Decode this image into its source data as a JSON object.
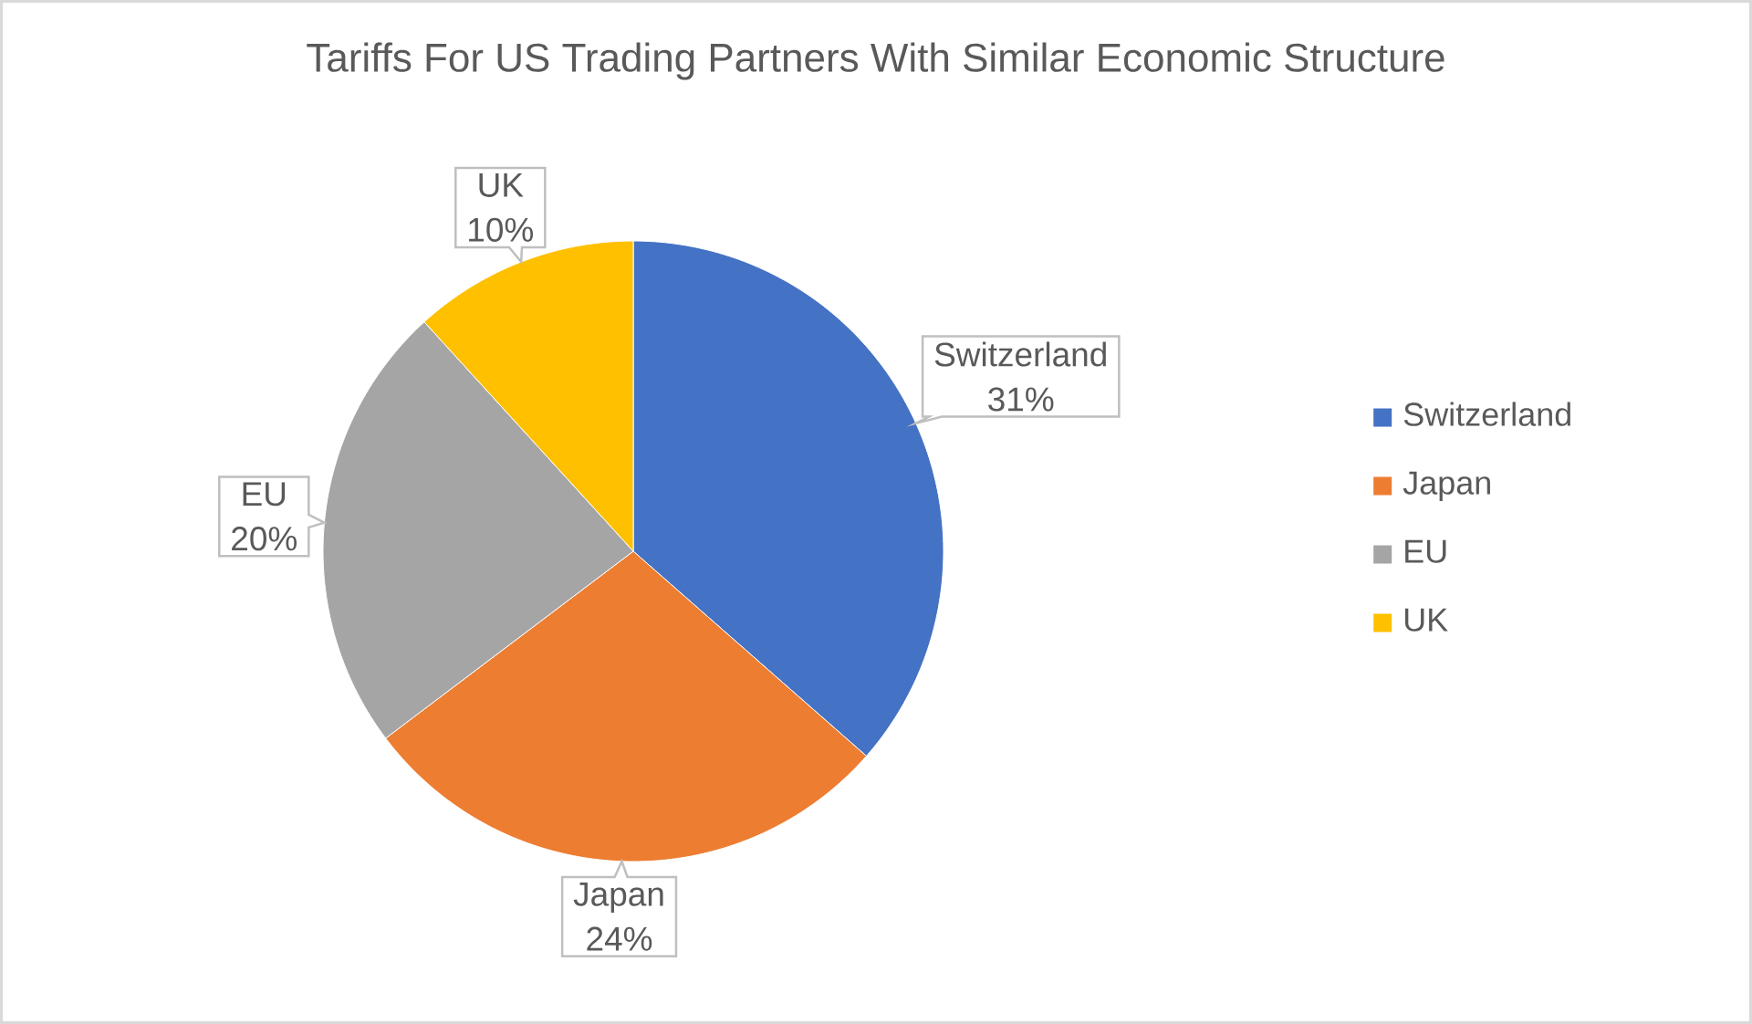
{
  "chart_data": {
    "type": "pie",
    "title": "Tariffs For US Trading Partners With Similar Economic Structure",
    "categories": [
      "Switzerland",
      "Japan",
      "EU",
      "UK"
    ],
    "values": [
      31,
      24,
      20,
      10
    ],
    "colors": [
      "#4472c4",
      "#ed7d31",
      "#a5a5a5",
      "#ffc000"
    ],
    "value_labels": [
      "31%",
      "24%",
      "20%",
      "10%"
    ],
    "legend": "right"
  }
}
